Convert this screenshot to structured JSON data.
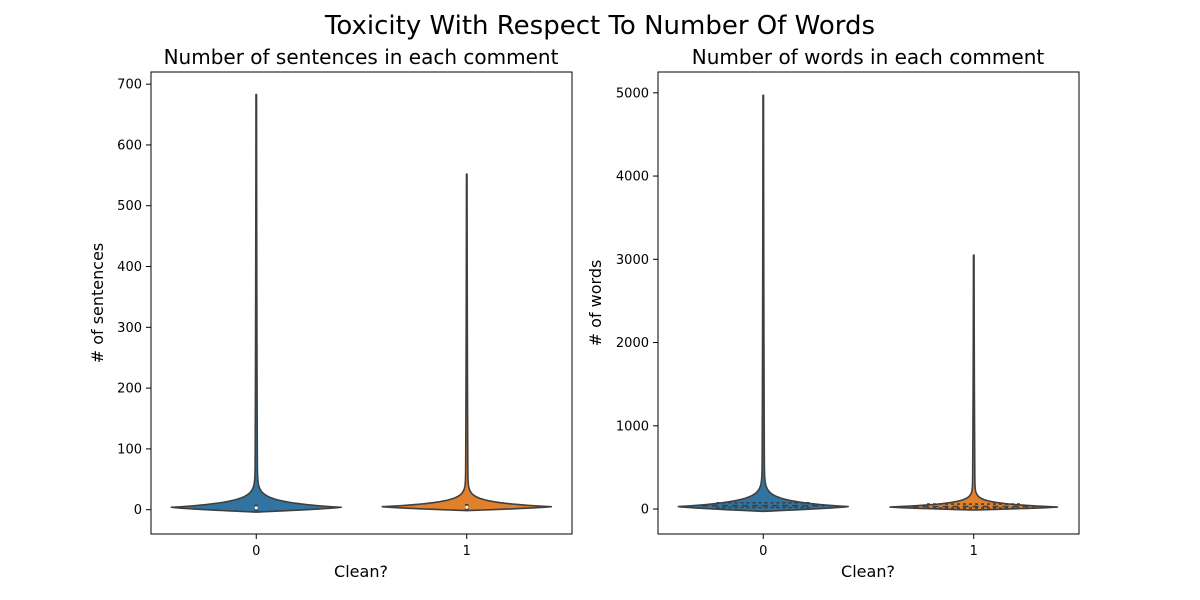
{
  "figure": {
    "suptitle": "Toxicity With Respect To Number Of Words"
  },
  "colors": {
    "clean_0": "#3274a1",
    "clean_1": "#e1812c",
    "outline": "#3f3f3f"
  },
  "chart_data": [
    {
      "type": "violin",
      "title": "Number of sentences in each comment",
      "xlabel": "Clean?",
      "ylabel": "# of sentences",
      "categories": [
        "0",
        "1"
      ],
      "ylim": [
        -40,
        720
      ],
      "yticks": [
        0,
        100,
        200,
        300,
        400,
        500,
        600,
        700
      ],
      "inner": "box",
      "series": [
        {
          "category": "0",
          "max": 683,
          "median": 3,
          "q1": 1,
          "q3": 5,
          "mode": 4
        },
        {
          "category": "1",
          "max": 552,
          "median": 4,
          "q1": 2,
          "q3": 6,
          "mode": 5
        }
      ]
    },
    {
      "type": "violin",
      "title": "Number of words in each comment",
      "xlabel": "Clean?",
      "ylabel": "# of words",
      "categories": [
        "0",
        "1"
      ],
      "ylim": [
        -300,
        5250
      ],
      "yticks": [
        0,
        1000,
        2000,
        3000,
        4000,
        5000
      ],
      "inner": "quartile",
      "series": [
        {
          "category": "0",
          "max": 4970,
          "median": 40,
          "q1": 18,
          "q3": 75,
          "mode": 30
        },
        {
          "category": "1",
          "max": 3050,
          "median": 30,
          "q1": 12,
          "q3": 60,
          "mode": 25
        }
      ]
    }
  ]
}
